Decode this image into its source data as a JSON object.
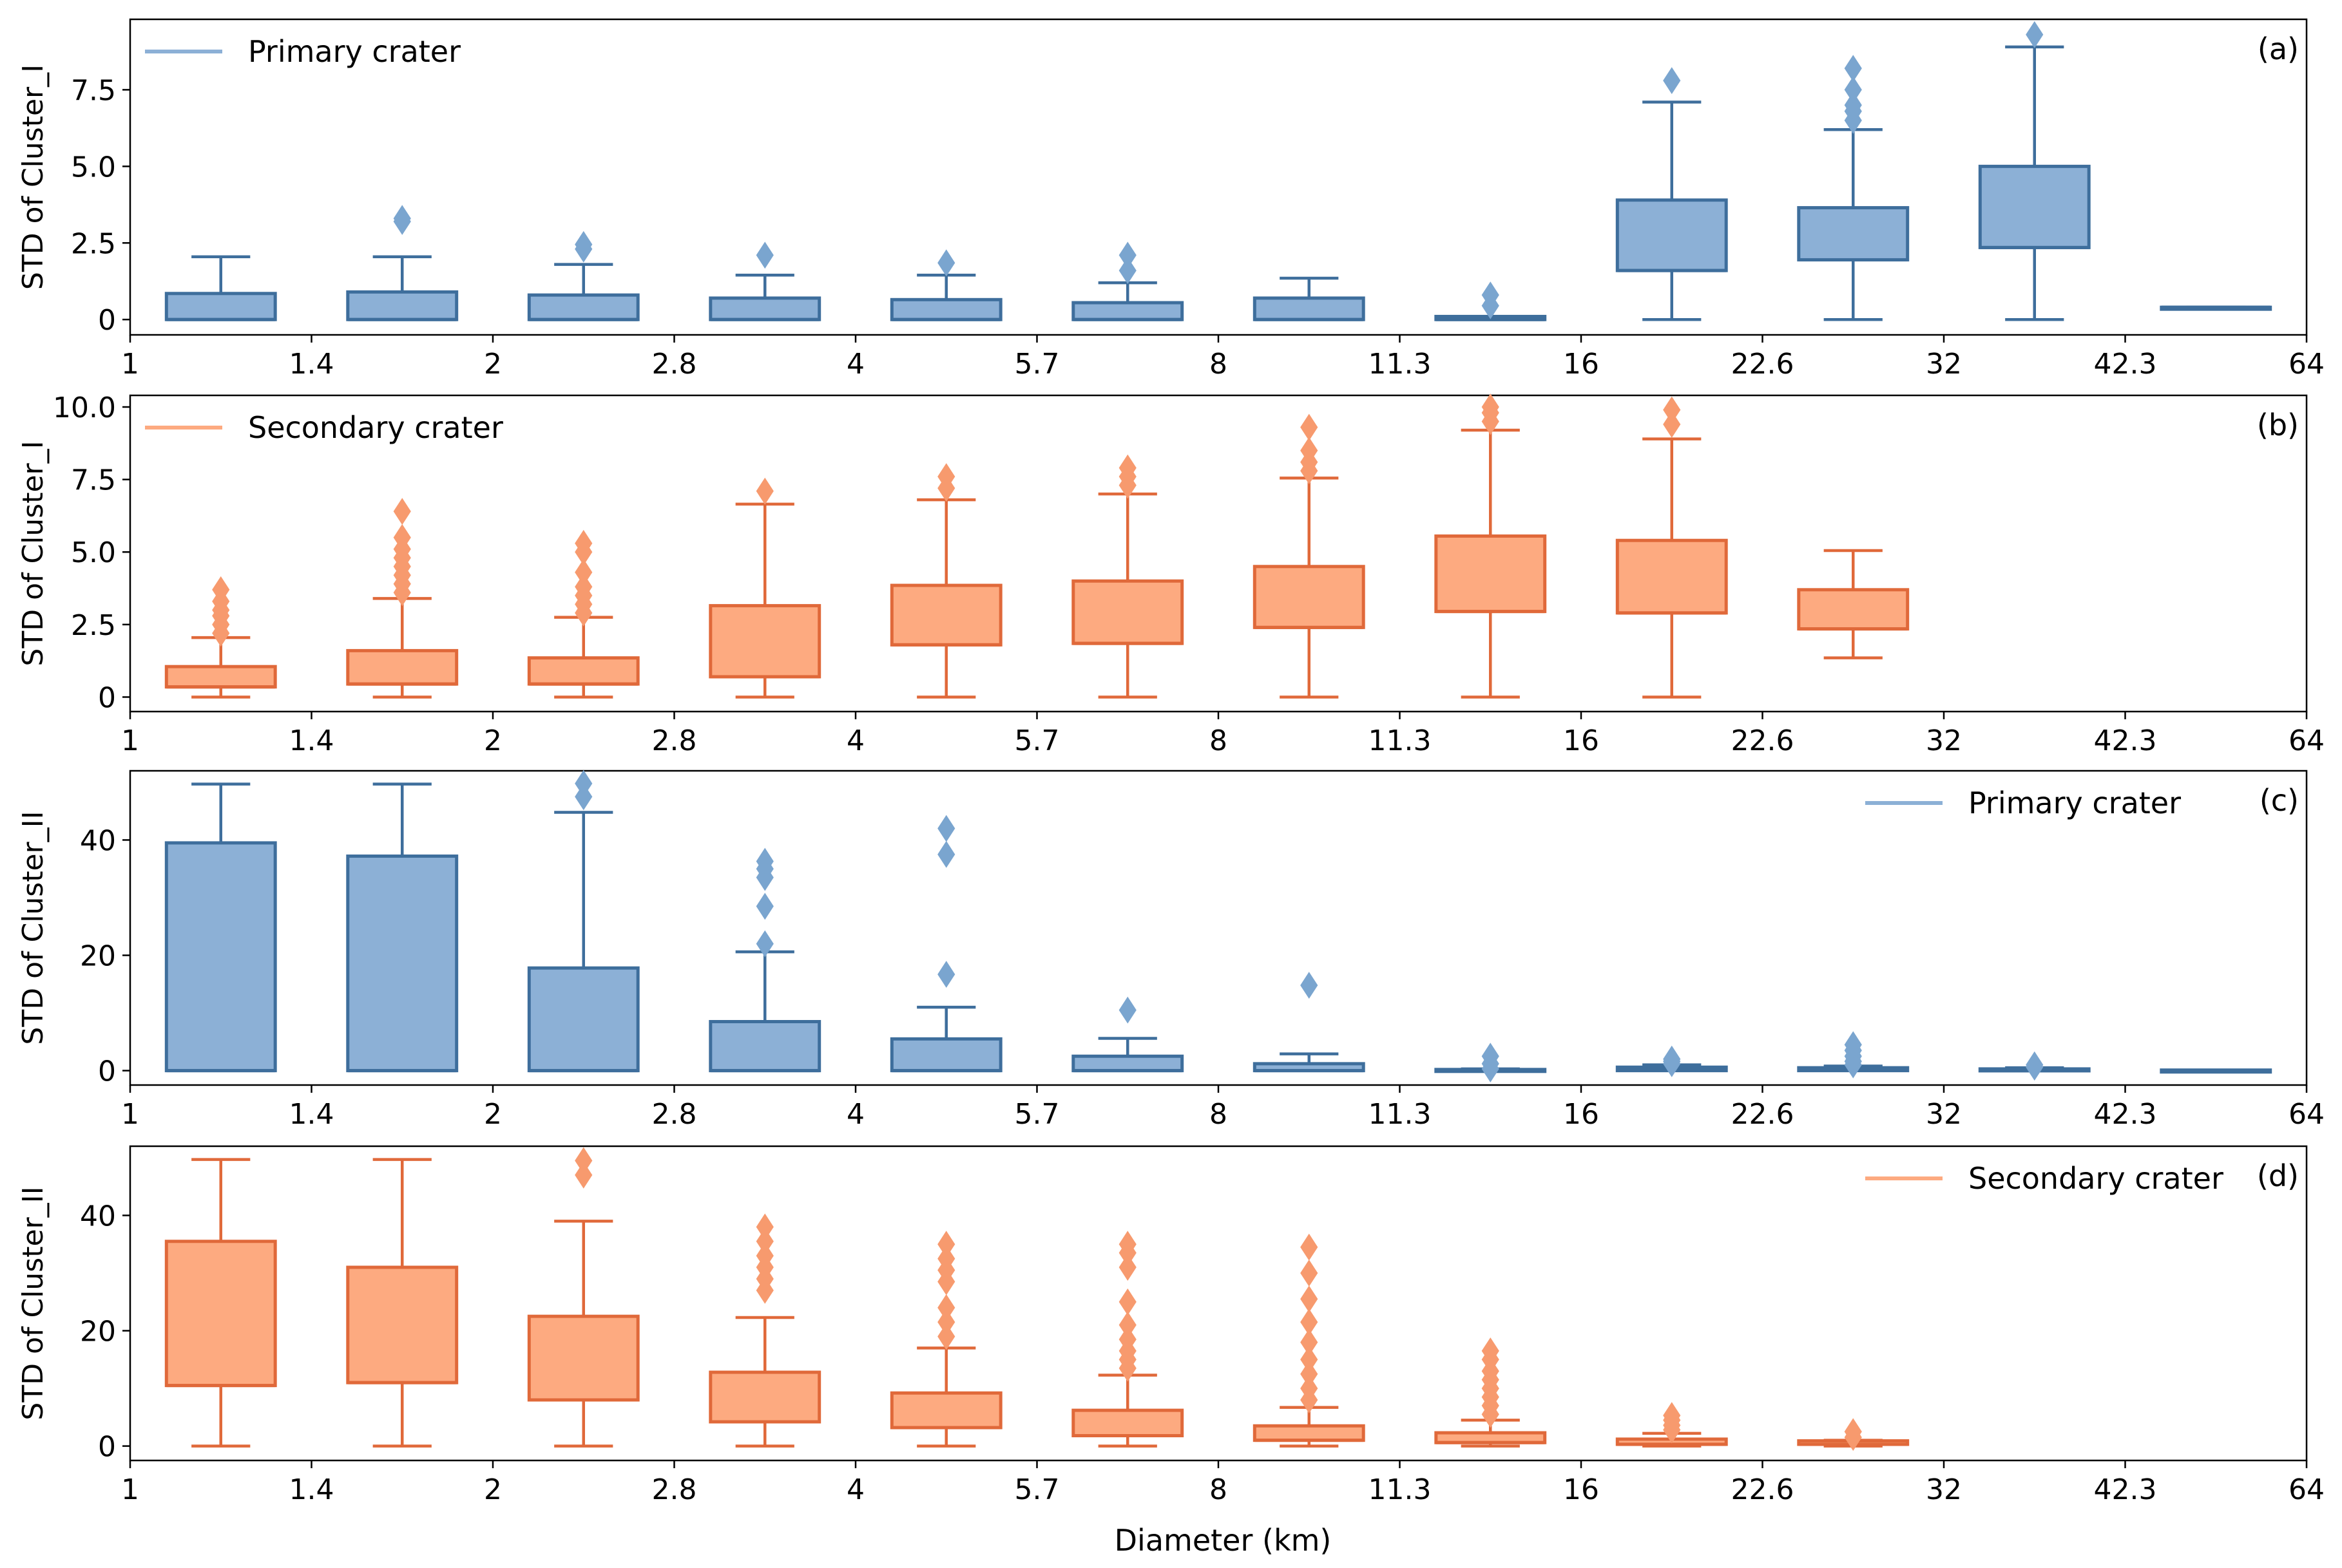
{
  "figure": {
    "xlabel": "Diameter (km)"
  },
  "colors": {
    "primary_fill": "#8cb0d6",
    "primary_edge": "#3e6e9c",
    "primary_flier": "#7aa5cf",
    "secondary_fill": "#fdaa80",
    "secondary_edge": "#e0693a",
    "secondary_flier": "#f79a6e"
  },
  "chart_data": [
    {
      "type": "box",
      "panel": "(a)",
      "ylabel": "STD of Cluster_I",
      "legend": "Primary crater",
      "legend_position": "top-left",
      "style": "primary",
      "ylim": [
        -0.5,
        9.8
      ],
      "yticks": [
        0,
        2.5,
        5.0,
        7.5
      ],
      "yticklabels": [
        "0",
        "2.5",
        "5.0",
        "7.5"
      ],
      "xticklabels": [
        "1",
        "1.4",
        "2",
        "2.8",
        "4",
        "5.7",
        "8",
        "11.3",
        "16",
        "22.6",
        "32",
        "42.3",
        "64"
      ],
      "boxes": [
        {
          "bin": 0,
          "q1": 0,
          "q3": 0.85,
          "med": 0,
          "wlo": 0,
          "whi": 2.05,
          "fliers": []
        },
        {
          "bin": 1,
          "q1": 0,
          "q3": 0.9,
          "med": 0,
          "wlo": 0,
          "whi": 2.05,
          "fliers": [
            3.2,
            3.3
          ]
        },
        {
          "bin": 2,
          "q1": 0,
          "q3": 0.8,
          "med": 0,
          "wlo": 0,
          "whi": 1.8,
          "fliers": [
            2.3,
            2.45
          ]
        },
        {
          "bin": 3,
          "q1": 0,
          "q3": 0.7,
          "med": 0,
          "wlo": 0,
          "whi": 1.45,
          "fliers": [
            2.1
          ]
        },
        {
          "bin": 4,
          "q1": 0,
          "q3": 0.65,
          "med": 0,
          "wlo": 0,
          "whi": 1.45,
          "fliers": [
            1.85
          ]
        },
        {
          "bin": 5,
          "q1": 0,
          "q3": 0.55,
          "med": 0,
          "wlo": 0,
          "whi": 1.2,
          "fliers": [
            1.6,
            2.1
          ]
        },
        {
          "bin": 6,
          "q1": 0,
          "q3": 0.7,
          "med": 0,
          "wlo": 0,
          "whi": 1.35,
          "fliers": []
        },
        {
          "bin": 7,
          "q1": 0,
          "q3": 0.1,
          "med": 0,
          "wlo": 0,
          "whi": 0.1,
          "fliers": [
            0.45,
            0.8
          ]
        },
        {
          "bin": 8,
          "q1": 1.6,
          "q3": 3.9,
          "med": 1.6,
          "wlo": 0,
          "whi": 7.1,
          "fliers": [
            7.8
          ]
        },
        {
          "bin": 9,
          "q1": 1.95,
          "q3": 3.65,
          "med": 1.95,
          "wlo": 0,
          "whi": 6.2,
          "fliers": [
            6.5,
            6.8,
            7.0,
            7.5,
            8.2
          ]
        },
        {
          "bin": 10,
          "q1": 2.35,
          "q3": 5.0,
          "med": 2.35,
          "wlo": 0,
          "whi": 8.9,
          "fliers": [
            9.3
          ]
        },
        {
          "bin": 11,
          "q1": 0.4,
          "q3": 0.4,
          "med": 0.4,
          "wlo": 0.4,
          "whi": 0.4,
          "fliers": []
        }
      ]
    },
    {
      "type": "box",
      "panel": "(b)",
      "ylabel": "STD of Cluster_I",
      "legend": "Secondary crater",
      "legend_position": "top-left",
      "style": "secondary",
      "ylim": [
        -0.5,
        10.4
      ],
      "yticks": [
        0,
        2.5,
        5.0,
        7.5,
        10.0
      ],
      "yticklabels": [
        "0",
        "2.5",
        "5.0",
        "7.5",
        "10.0"
      ],
      "xticklabels": [
        "1",
        "1.4",
        "2",
        "2.8",
        "4",
        "5.7",
        "8",
        "11.3",
        "16",
        "22.6",
        "32",
        "42.3",
        "64"
      ],
      "boxes": [
        {
          "bin": 0,
          "q1": 0.35,
          "q3": 1.05,
          "med": 0.35,
          "wlo": 0,
          "whi": 2.05,
          "fliers": [
            2.2,
            2.5,
            2.8,
            3.0,
            3.3,
            3.7
          ]
        },
        {
          "bin": 1,
          "q1": 0.45,
          "q3": 1.6,
          "med": 0.45,
          "wlo": 0,
          "whi": 3.4,
          "fliers": [
            3.6,
            3.9,
            4.2,
            4.5,
            4.8,
            5.1,
            5.5,
            6.4
          ]
        },
        {
          "bin": 2,
          "q1": 0.45,
          "q3": 1.35,
          "med": 0.45,
          "wlo": 0,
          "whi": 2.75,
          "fliers": [
            2.9,
            3.2,
            3.5,
            3.8,
            4.3,
            5.0,
            5.3
          ]
        },
        {
          "bin": 3,
          "q1": 0.7,
          "q3": 3.15,
          "med": 0.7,
          "wlo": 0,
          "whi": 6.65,
          "fliers": [
            7.1
          ]
        },
        {
          "bin": 4,
          "q1": 1.8,
          "q3": 3.85,
          "med": 1.8,
          "wlo": 0,
          "whi": 6.8,
          "fliers": [
            7.2,
            7.6
          ]
        },
        {
          "bin": 5,
          "q1": 1.85,
          "q3": 4.0,
          "med": 1.85,
          "wlo": 0,
          "whi": 7.0,
          "fliers": [
            7.3,
            7.6,
            7.9
          ]
        },
        {
          "bin": 6,
          "q1": 2.4,
          "q3": 4.5,
          "med": 2.4,
          "wlo": 0,
          "whi": 7.55,
          "fliers": [
            7.8,
            8.1,
            8.5,
            9.3
          ]
        },
        {
          "bin": 7,
          "q1": 2.95,
          "q3": 5.55,
          "med": 2.95,
          "wlo": 0,
          "whi": 9.2,
          "fliers": [
            9.5,
            9.8,
            10.0
          ]
        },
        {
          "bin": 8,
          "q1": 2.9,
          "q3": 5.4,
          "med": 2.9,
          "wlo": 0,
          "whi": 8.9,
          "fliers": [
            9.4,
            9.9
          ]
        },
        {
          "bin": 9,
          "q1": 2.35,
          "q3": 3.7,
          "med": 2.35,
          "wlo": 1.35,
          "whi": 5.05,
          "fliers": []
        }
      ]
    },
    {
      "type": "box",
      "panel": "(c)",
      "ylabel": "STD of Cluster_II",
      "legend": "Primary crater",
      "legend_position": "top-right",
      "style": "primary",
      "ylim": [
        -2.5,
        52
      ],
      "yticks": [
        0,
        20,
        40
      ],
      "yticklabels": [
        "0",
        "20",
        "40"
      ],
      "xticklabels": [
        "1",
        "1.4",
        "2",
        "2.8",
        "4",
        "5.7",
        "8",
        "11.3",
        "16",
        "22.6",
        "32",
        "42.3",
        "64"
      ],
      "boxes": [
        {
          "bin": 0,
          "q1": 0,
          "q3": 39.5,
          "med": 0,
          "wlo": 0,
          "whi": 49.7,
          "fliers": []
        },
        {
          "bin": 1,
          "q1": 0,
          "q3": 37.2,
          "med": 0,
          "wlo": 0,
          "whi": 49.7,
          "fliers": []
        },
        {
          "bin": 2,
          "q1": 0,
          "q3": 17.8,
          "med": 0,
          "wlo": 0,
          "whi": 44.8,
          "fliers": [
            47.5,
            49.8
          ]
        },
        {
          "bin": 3,
          "q1": 0,
          "q3": 8.5,
          "med": 0,
          "wlo": 0,
          "whi": 20.6,
          "fliers": [
            22.0,
            28.5,
            33.5,
            35.0,
            36.3
          ]
        },
        {
          "bin": 4,
          "q1": 0,
          "q3": 5.5,
          "med": 0,
          "wlo": 0,
          "whi": 11.0,
          "fliers": [
            16.7,
            37.5,
            42.0
          ]
        },
        {
          "bin": 5,
          "q1": 0,
          "q3": 2.5,
          "med": 0,
          "wlo": 0,
          "whi": 5.6,
          "fliers": [
            10.5
          ]
        },
        {
          "bin": 6,
          "q1": 0,
          "q3": 1.2,
          "med": 0,
          "wlo": 0,
          "whi": 2.9,
          "fliers": [
            14.8
          ]
        },
        {
          "bin": 7,
          "q1": 0,
          "q3": 0.2,
          "med": 0,
          "wlo": 0,
          "whi": 0.3,
          "fliers": [
            0.3,
            1.2,
            2.5
          ]
        },
        {
          "bin": 8,
          "q1": 0,
          "q3": 0.6,
          "med": 0.3,
          "wlo": 0,
          "whi": 1.0,
          "fliers": [
            1.2,
            1.6,
            2.0
          ]
        },
        {
          "bin": 9,
          "q1": 0,
          "q3": 0.5,
          "med": 0.2,
          "wlo": 0,
          "whi": 0.8,
          "fliers": [
            1.0,
            1.6,
            2.5,
            3.5,
            4.5
          ]
        },
        {
          "bin": 10,
          "q1": 0,
          "q3": 0.3,
          "med": 0.1,
          "wlo": 0,
          "whi": 0.5,
          "fliers": [
            0.6,
            1.0
          ]
        },
        {
          "bin": 11,
          "q1": 0,
          "q3": 0.1,
          "med": 0,
          "wlo": 0,
          "whi": 0.1,
          "fliers": []
        }
      ]
    },
    {
      "type": "box",
      "panel": "(d)",
      "ylabel": "STD of Cluster_II",
      "legend": "Secondary crater",
      "legend_position": "top-right",
      "style": "secondary",
      "ylim": [
        -2.5,
        52
      ],
      "yticks": [
        0,
        20,
        40
      ],
      "yticklabels": [
        "0",
        "20",
        "40"
      ],
      "xticklabels": [
        "1",
        "1.4",
        "2",
        "2.8",
        "4",
        "5.7",
        "8",
        "11.3",
        "16",
        "22.6",
        "32",
        "42.3",
        "64"
      ],
      "boxes": [
        {
          "bin": 0,
          "q1": 10.5,
          "q3": 35.5,
          "med": 10.5,
          "wlo": 0,
          "whi": 49.7,
          "fliers": []
        },
        {
          "bin": 1,
          "q1": 11.0,
          "q3": 31.0,
          "med": 11.0,
          "wlo": 0,
          "whi": 49.7,
          "fliers": []
        },
        {
          "bin": 2,
          "q1": 8.0,
          "q3": 22.5,
          "med": 8.0,
          "wlo": 0,
          "whi": 39.0,
          "fliers": [
            47.0,
            49.5
          ]
        },
        {
          "bin": 3,
          "q1": 4.2,
          "q3": 12.8,
          "med": 4.2,
          "wlo": 0,
          "whi": 22.3,
          "fliers": [
            27.0,
            29.0,
            31.0,
            33.0,
            35.5,
            38.0
          ]
        },
        {
          "bin": 4,
          "q1": 3.2,
          "q3": 9.2,
          "med": 3.2,
          "wlo": 0,
          "whi": 17.0,
          "fliers": [
            19.0,
            21.5,
            24.0,
            28.5,
            30.5,
            32.5,
            35.0
          ]
        },
        {
          "bin": 5,
          "q1": 1.8,
          "q3": 6.2,
          "med": 1.8,
          "wlo": 0,
          "whi": 12.3,
          "fliers": [
            13.5,
            15.0,
            16.5,
            18.5,
            21.0,
            25.0,
            31.0,
            33.5,
            35.0
          ]
        },
        {
          "bin": 6,
          "q1": 1.0,
          "q3": 3.5,
          "med": 1.0,
          "wlo": 0,
          "whi": 6.7,
          "fliers": [
            8.0,
            10.0,
            12.5,
            15.0,
            18.0,
            21.5,
            25.5,
            30.0,
            34.5
          ]
        },
        {
          "bin": 7,
          "q1": 0.6,
          "q3": 2.3,
          "med": 0.6,
          "wlo": 0,
          "whi": 4.5,
          "fliers": [
            5.5,
            7.0,
            8.5,
            10.0,
            11.5,
            13.0,
            15.0,
            16.5
          ]
        },
        {
          "bin": 8,
          "q1": 0.3,
          "q3": 1.2,
          "med": 0.3,
          "wlo": 0,
          "whi": 2.2,
          "fliers": [
            2.8,
            3.6,
            4.5,
            5.3
          ]
        },
        {
          "bin": 9,
          "q1": 0.3,
          "q3": 0.9,
          "med": 0.3,
          "wlo": 0,
          "whi": 1.0,
          "fliers": [
            1.5,
            2.5
          ]
        }
      ]
    }
  ]
}
